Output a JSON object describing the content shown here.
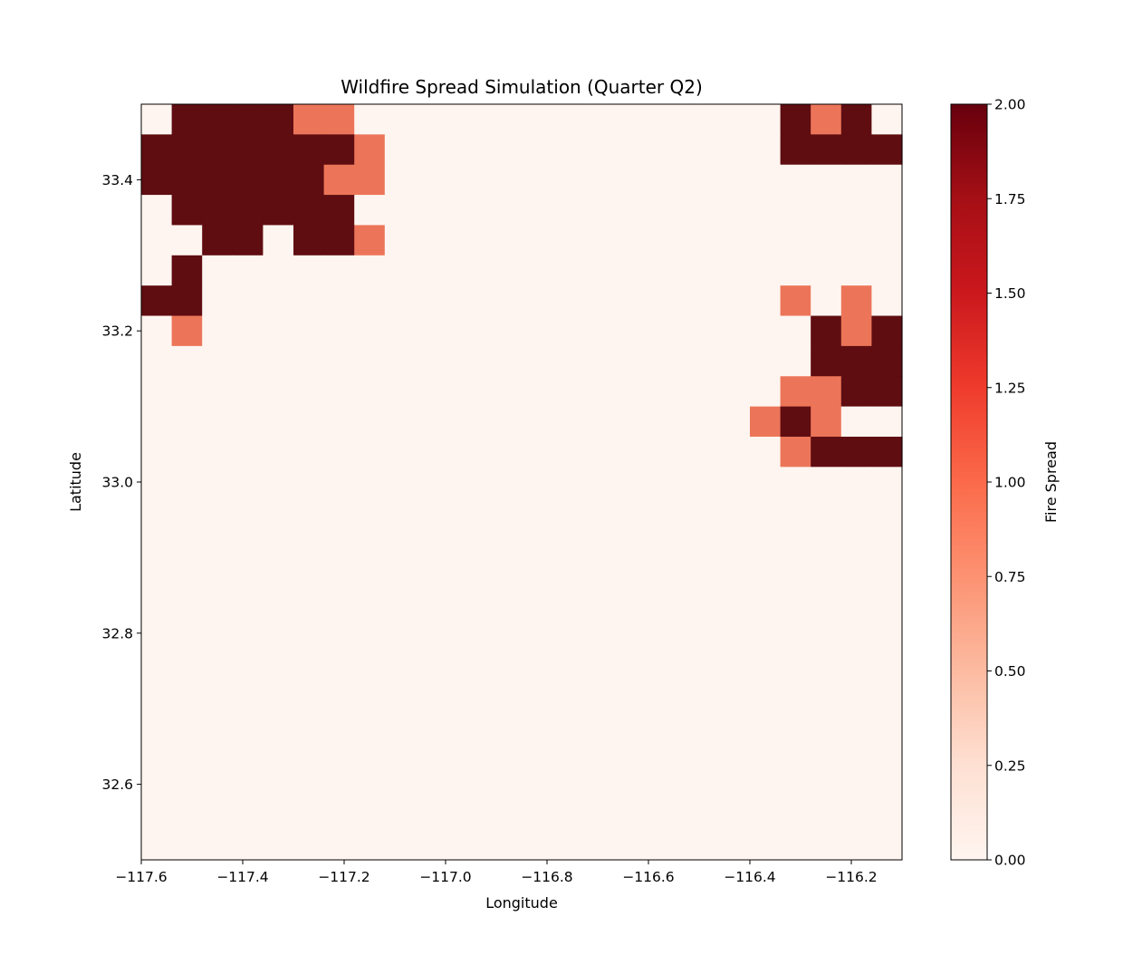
{
  "chart_data": {
    "type": "heatmap",
    "title": "Wildfire Spread Simulation (Quarter Q2)",
    "xlabel": "Longitude",
    "ylabel": "Latitude",
    "xlim": [
      -117.6,
      -116.1
    ],
    "ylim": [
      32.5,
      33.5
    ],
    "x_ticks": [
      -117.6,
      -117.4,
      -117.2,
      -117.0,
      -116.8,
      -116.6,
      -116.4,
      -116.2
    ],
    "x_tick_labels": [
      "−117.6",
      "−117.4",
      "−117.2",
      "−117.0",
      "−116.8",
      "−116.6",
      "−116.4",
      "−116.2"
    ],
    "y_ticks": [
      32.6,
      32.8,
      33.0,
      33.2,
      33.4
    ],
    "y_tick_labels": [
      "32.6",
      "32.8",
      "33.0",
      "33.2",
      "33.4"
    ],
    "grid": false,
    "colorbar": {
      "label": "Fire Spread",
      "colormap": "Reds",
      "range": [
        0,
        2
      ],
      "ticks": [
        0,
        0.25,
        0.5,
        0.75,
        1.0,
        1.25,
        1.5,
        1.75,
        2.0
      ],
      "tick_labels": [
        "0.00",
        "0.25",
        "0.50",
        "0.75",
        "1.00",
        "1.25",
        "1.50",
        "1.75",
        "2.00"
      ]
    },
    "colors": {
      "0": "#fff5f0",
      "1": "#ec7559",
      "2": "#5f0d11"
    },
    "rows_top_to_bottom": [
      "0222211000000000000002120",
      "2222222100000000000002222",
      "2222221100000000000000000",
      "0222222000000000000000000",
      "0022022100000000000000000",
      "0200000000000000000000000",
      "2200000000000000000001010",
      "0100000000000000000000212",
      "0000000000000000000000222",
      "0000000000000000000001122",
      "0000000000000000000012100",
      "0000000000000000000001222",
      "0000000000000000000000000",
      "0000000000000000000000000",
      "0000000000000000000000000",
      "0000000000000000000000000",
      "0000000000000000000000000",
      "0000000000000000000000000",
      "0000000000000000000000000",
      "0000000000000000000000000",
      "0000000000000000000000000",
      "0000000000000000000000000",
      "0000000000000000000000000",
      "0000000000000000000000000",
      "0000000000000000000000000"
    ]
  }
}
